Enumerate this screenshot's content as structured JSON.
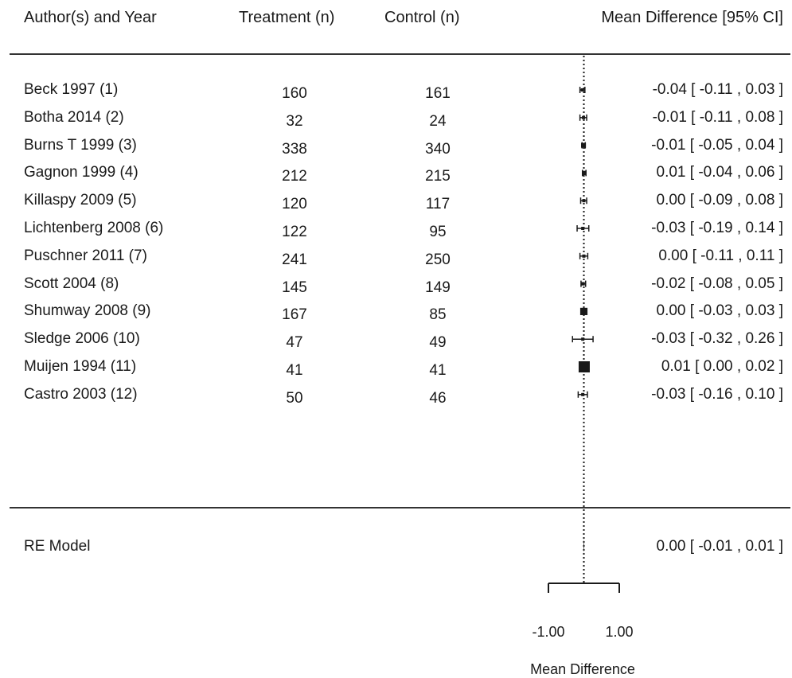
{
  "headers": {
    "study": "Author(s) and Year",
    "treatment": "Treatment (n)",
    "control": "Control (n)",
    "estimate": "Mean Difference [95% CI]"
  },
  "studies": [
    {
      "label": "Beck 1997 (1)",
      "treatment_n": "160",
      "control_n": "161",
      "ci_text": "-0.04 [ -0.11 , 0.03 ]"
    },
    {
      "label": "Botha 2014 (2)",
      "treatment_n": "32",
      "control_n": "24",
      "ci_text": "-0.01 [ -0.11 , 0.08 ]"
    },
    {
      "label": "Burns T 1999 (3)",
      "treatment_n": "338",
      "control_n": "340",
      "ci_text": "-0.01 [ -0.05 , 0.04 ]"
    },
    {
      "label": "Gagnon 1999 (4)",
      "treatment_n": "212",
      "control_n": "215",
      "ci_text": "0.01 [ -0.04 , 0.06 ]"
    },
    {
      "label": "Killaspy 2009 (5)",
      "treatment_n": "120",
      "control_n": "117",
      "ci_text": "0.00 [ -0.09 , 0.08 ]"
    },
    {
      "label": "Lichtenberg 2008 (6)",
      "treatment_n": "122",
      "control_n": "95",
      "ci_text": "-0.03 [ -0.19 , 0.14 ]"
    },
    {
      "label": "Puschner 2011 (7)",
      "treatment_n": "241",
      "control_n": "250",
      "ci_text": "0.00 [ -0.11 , 0.11 ]"
    },
    {
      "label": "Scott 2004 (8)",
      "treatment_n": "145",
      "control_n": "149",
      "ci_text": "-0.02 [ -0.08 , 0.05 ]"
    },
    {
      "label": "Shumway 2008 (9)",
      "treatment_n": "167",
      "control_n": "85",
      "ci_text": "0.00 [ -0.03 , 0.03 ]"
    },
    {
      "label": "Sledge 2006 (10)",
      "treatment_n": "47",
      "control_n": "49",
      "ci_text": "-0.03 [ -0.32 , 0.26 ]"
    },
    {
      "label": "Muijen 1994 (11)",
      "treatment_n": "41",
      "control_n": "41",
      "ci_text": "0.01 [  0.00 , 0.02 ]"
    },
    {
      "label": "Castro 2003 (12)",
      "treatment_n": "50",
      "control_n": "46",
      "ci_text": "-0.03 [ -0.16 , 0.10 ]"
    }
  ],
  "summary": {
    "label": "RE Model",
    "ci_text": "0.00 [ -0.01 , 0.01 ]"
  },
  "chart_data": {
    "type": "forest",
    "title": "",
    "xlabel": "Mean Difference",
    "xlim": [
      -1.0,
      1.0
    ],
    "xticks": [
      -1.0,
      1.0
    ],
    "xtick_labels": [
      "-1.00",
      "1.00"
    ],
    "reference_line": 0,
    "studies": [
      {
        "name": "Beck 1997 (1)",
        "estimate": -0.04,
        "lower": -0.11,
        "upper": 0.03
      },
      {
        "name": "Botha 2014 (2)",
        "estimate": -0.01,
        "lower": -0.11,
        "upper": 0.08
      },
      {
        "name": "Burns T 1999 (3)",
        "estimate": -0.01,
        "lower": -0.05,
        "upper": 0.04
      },
      {
        "name": "Gagnon 1999 (4)",
        "estimate": 0.01,
        "lower": -0.04,
        "upper": 0.06
      },
      {
        "name": "Killaspy 2009 (5)",
        "estimate": 0.0,
        "lower": -0.09,
        "upper": 0.08
      },
      {
        "name": "Lichtenberg 2008 (6)",
        "estimate": -0.03,
        "lower": -0.19,
        "upper": 0.14
      },
      {
        "name": "Puschner 2011 (7)",
        "estimate": 0.0,
        "lower": -0.11,
        "upper": 0.11
      },
      {
        "name": "Scott 2004 (8)",
        "estimate": -0.02,
        "lower": -0.08,
        "upper": 0.05
      },
      {
        "name": "Shumway 2008 (9)",
        "estimate": 0.0,
        "lower": -0.03,
        "upper": 0.03
      },
      {
        "name": "Sledge 2006 (10)",
        "estimate": -0.03,
        "lower": -0.32,
        "upper": 0.26
      },
      {
        "name": "Muijen 1994 (11)",
        "estimate": 0.01,
        "lower": 0.0,
        "upper": 0.02
      },
      {
        "name": "Castro 2003 (12)",
        "estimate": -0.03,
        "lower": -0.16,
        "upper": 0.1
      }
    ],
    "pooled": {
      "name": "RE Model",
      "estimate": 0.0,
      "lower": -0.01,
      "upper": 0.01
    },
    "colors": {
      "ink": "#1a1a1a",
      "rule": "#333333"
    }
  }
}
